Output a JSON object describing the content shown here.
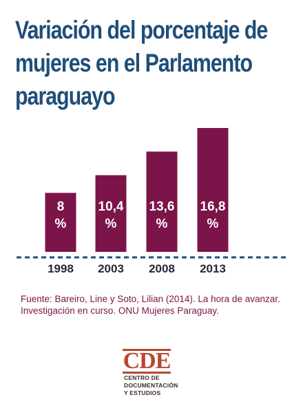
{
  "title": "Variación del porcentaje de mujeres en el Parlamento paraguayo",
  "source": "Fuente: Bareiro, Line y Soto, Lilian (2014). La hora de avanzar. Investigación en curso. ONU Mujeres Paraguay.",
  "logo": {
    "mark": "CDE",
    "lines": [
      "CENTRO DE",
      "DOCUMENTACIÓN",
      "Y ESTUDIOS"
    ]
  },
  "colors": {
    "title": "#1f4e79",
    "bar": "#7b1448",
    "baseline": "#1f4e79",
    "source": "#7b1448",
    "logo": "#b8482f"
  },
  "chart_data": {
    "type": "bar",
    "categories": [
      "1998",
      "2003",
      "2008",
      "2013"
    ],
    "values": [
      8,
      10.4,
      13.6,
      16.8
    ],
    "value_labels": [
      "8\n%",
      "10,4\n%",
      "13,6\n%",
      "16,8\n%"
    ],
    "title": "Variación del porcentaje de mujeres en el Parlamento paraguayo",
    "xlabel": "",
    "ylabel": "",
    "ylim": [
      0,
      16.8
    ],
    "grid": false,
    "legend": "none"
  }
}
